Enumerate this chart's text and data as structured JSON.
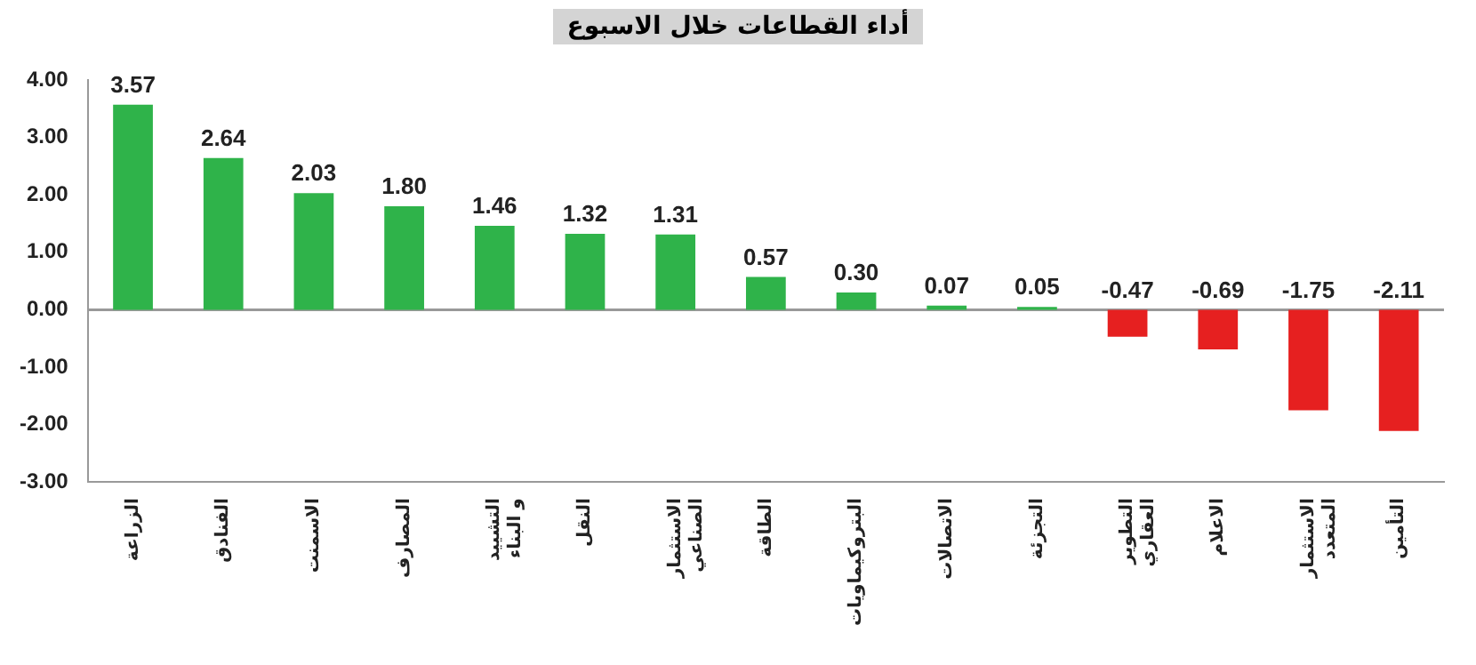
{
  "chart_data": {
    "type": "bar",
    "title": "أداء القطاعات خلال الاسبوع",
    "categories": [
      "الزراعة",
      "الفنادق",
      "الاسمنت",
      "المصارف",
      "التشييد و البناء",
      "النقل",
      "الاستثمار الصناعي",
      "الطاقة",
      "البتروكيماويات",
      "الاتصالات",
      "التجزئة",
      "التطوير العقاري",
      "الاعلام",
      "الاستثمار المتعدد",
      "التأمين"
    ],
    "values": [
      3.57,
      2.64,
      2.03,
      1.8,
      1.46,
      1.32,
      1.31,
      0.57,
      0.3,
      0.07,
      0.05,
      -0.47,
      -0.69,
      -1.75,
      -2.11
    ],
    "value_labels": [
      "3.57",
      "2.64",
      "2.03",
      "1.80",
      "1.46",
      "1.32",
      "1.31",
      "0.57",
      "0.30",
      "0.07",
      "0.05",
      "-0.47",
      "-0.69",
      "-1.75",
      "-2.11"
    ],
    "colors": [
      "#2fb34a",
      "#2fb34a",
      "#2fb34a",
      "#2fb34a",
      "#2fb34a",
      "#2fb34a",
      "#2fb34a",
      "#2fb34a",
      "#2fb34a",
      "#2fb34a",
      "#2fb34a",
      "#e62020",
      "#e62020",
      "#e62020",
      "#e62020"
    ],
    "ylim": [
      -3,
      4
    ],
    "yticks": [
      {
        "value": -3,
        "label": "-3.00"
      },
      {
        "value": -2,
        "label": "-2.00"
      },
      {
        "value": -1,
        "label": "-1.00"
      },
      {
        "value": 0,
        "label": "0.00"
      },
      {
        "value": 1,
        "label": "1.00"
      },
      {
        "value": 2,
        "label": "2.00"
      },
      {
        "value": 3,
        "label": "3.00"
      },
      {
        "value": 4,
        "label": "4.00"
      }
    ],
    "ref_lines": [
      {
        "axis": "y",
        "value": 0,
        "color": "#999999"
      }
    ],
    "grid": false,
    "legend": false
  }
}
